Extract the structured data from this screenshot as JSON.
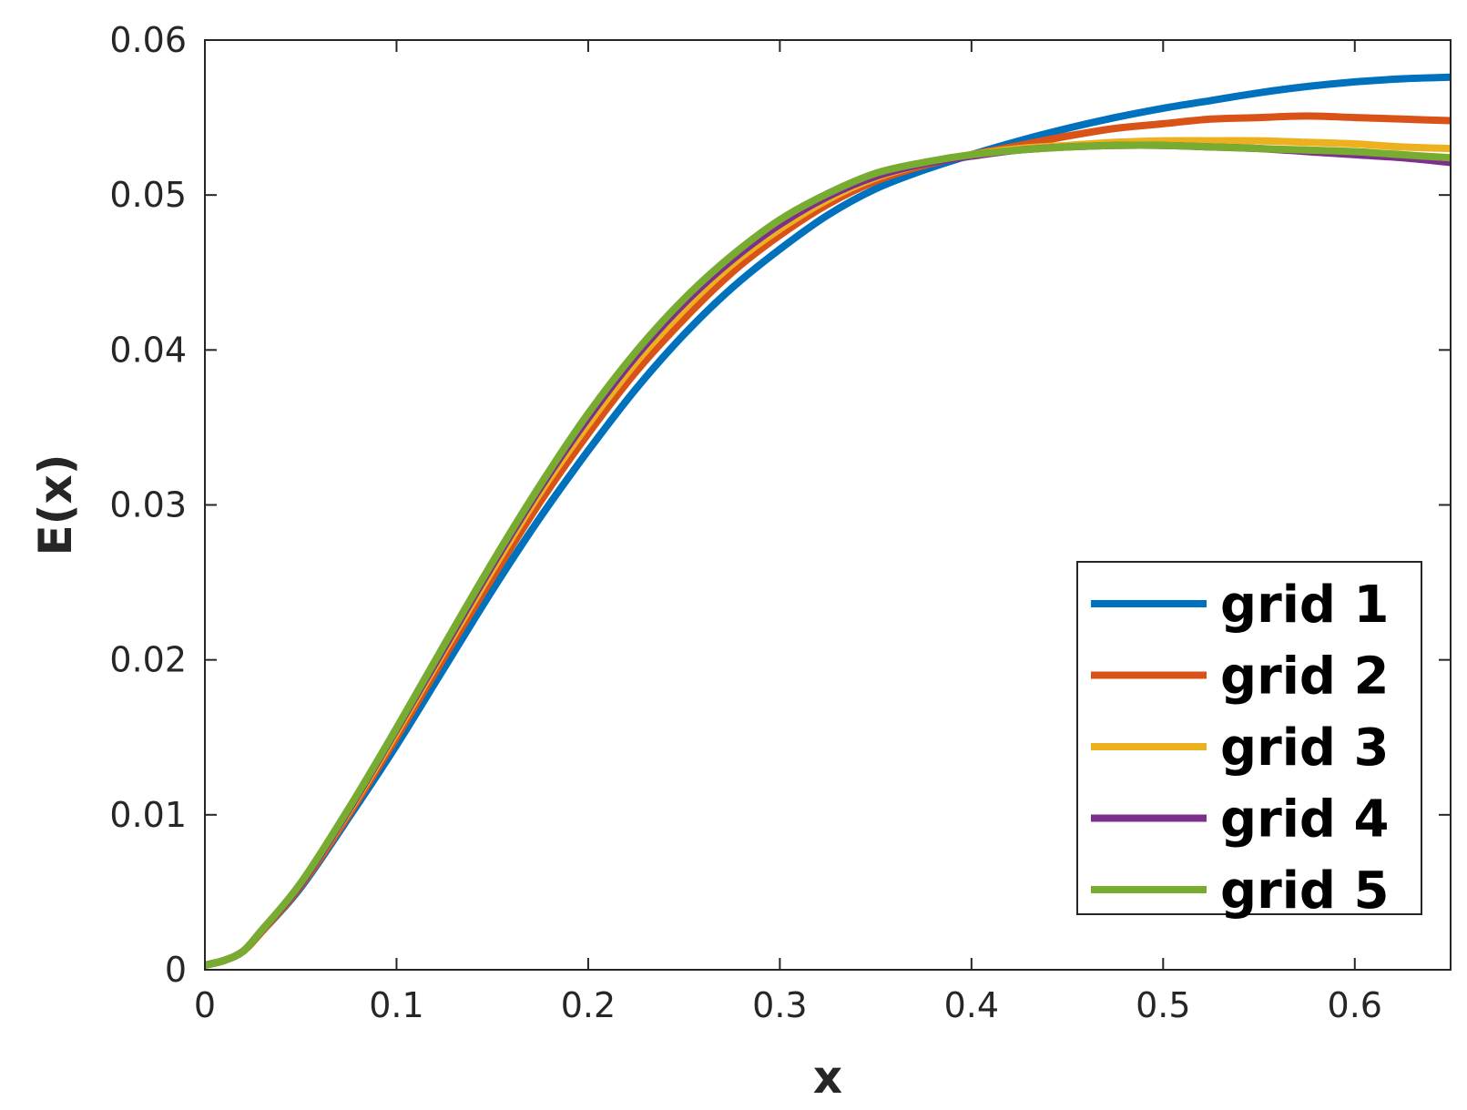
{
  "chart_data": {
    "type": "line",
    "title": "",
    "xlabel": "x",
    "ylabel": "E(x)",
    "xlim": [
      0,
      0.65
    ],
    "ylim": [
      0,
      0.06
    ],
    "xticks": [
      0,
      0.1,
      0.2,
      0.3,
      0.4,
      0.5,
      0.6
    ],
    "xtick_labels": [
      "0",
      "0.1",
      "0.2",
      "0.3",
      "0.4",
      "0.5",
      "0.6"
    ],
    "yticks": [
      0,
      0.01,
      0.02,
      0.03,
      0.04,
      0.05,
      0.06
    ],
    "ytick_labels": [
      "0",
      "0.01",
      "0.02",
      "0.03",
      "0.04",
      "0.05",
      "0.06"
    ],
    "grid": false,
    "legend_position": "bottom-right",
    "x": [
      0,
      0.01,
      0.02,
      0.03,
      0.05,
      0.075,
      0.1,
      0.125,
      0.15,
      0.175,
      0.2,
      0.225,
      0.25,
      0.275,
      0.3,
      0.325,
      0.35,
      0.375,
      0.4,
      0.425,
      0.45,
      0.475,
      0.5,
      0.525,
      0.55,
      0.575,
      0.6,
      0.625,
      0.65
    ],
    "series": [
      {
        "name": "grid 1",
        "color": "#0072BD",
        "values": [
          0.0003,
          0.0006,
          0.0012,
          0.0025,
          0.0053,
          0.0098,
          0.0145,
          0.0195,
          0.0245,
          0.0292,
          0.0335,
          0.0375,
          0.041,
          0.044,
          0.0465,
          0.0487,
          0.0504,
          0.0516,
          0.0526,
          0.0535,
          0.0543,
          0.055,
          0.0556,
          0.0561,
          0.0566,
          0.057,
          0.0573,
          0.0575,
          0.0576
        ]
      },
      {
        "name": "grid 2",
        "color": "#D95319",
        "values": [
          0.0003,
          0.0006,
          0.0012,
          0.0025,
          0.0054,
          0.01,
          0.015,
          0.0202,
          0.0253,
          0.0302,
          0.0346,
          0.0386,
          0.042,
          0.045,
          0.0474,
          0.0494,
          0.0509,
          0.0519,
          0.0526,
          0.0532,
          0.0538,
          0.0543,
          0.0546,
          0.0549,
          0.055,
          0.0551,
          0.055,
          0.0549,
          0.0548
        ]
      },
      {
        "name": "grid 3",
        "color": "#EDB120",
        "values": [
          0.0003,
          0.0006,
          0.0012,
          0.0026,
          0.0055,
          0.0102,
          0.0153,
          0.0206,
          0.0258,
          0.0308,
          0.0352,
          0.0392,
          0.0426,
          0.0455,
          0.0478,
          0.0497,
          0.0511,
          0.052,
          0.0526,
          0.053,
          0.0532,
          0.0534,
          0.0535,
          0.0535,
          0.0535,
          0.0534,
          0.0533,
          0.0531,
          0.053
        ]
      },
      {
        "name": "grid 4",
        "color": "#7E2F8E",
        "values": [
          0.0003,
          0.0006,
          0.0012,
          0.0026,
          0.0055,
          0.0103,
          0.0155,
          0.0208,
          0.0261,
          0.0311,
          0.0356,
          0.0396,
          0.043,
          0.0458,
          0.0481,
          0.0499,
          0.0512,
          0.052,
          0.0525,
          0.0529,
          0.0531,
          0.0532,
          0.0532,
          0.0531,
          0.053,
          0.0528,
          0.0526,
          0.0524,
          0.0521
        ]
      },
      {
        "name": "grid 5",
        "color": "#77AC30",
        "values": [
          0.0003,
          0.0006,
          0.0012,
          0.0026,
          0.0056,
          0.0104,
          0.0156,
          0.021,
          0.0263,
          0.0313,
          0.0359,
          0.0399,
          0.0433,
          0.0461,
          0.0484,
          0.0501,
          0.0514,
          0.0521,
          0.0526,
          0.0529,
          0.0531,
          0.0532,
          0.0532,
          0.0531,
          0.053,
          0.0529,
          0.0528,
          0.0526,
          0.0524
        ]
      }
    ]
  }
}
